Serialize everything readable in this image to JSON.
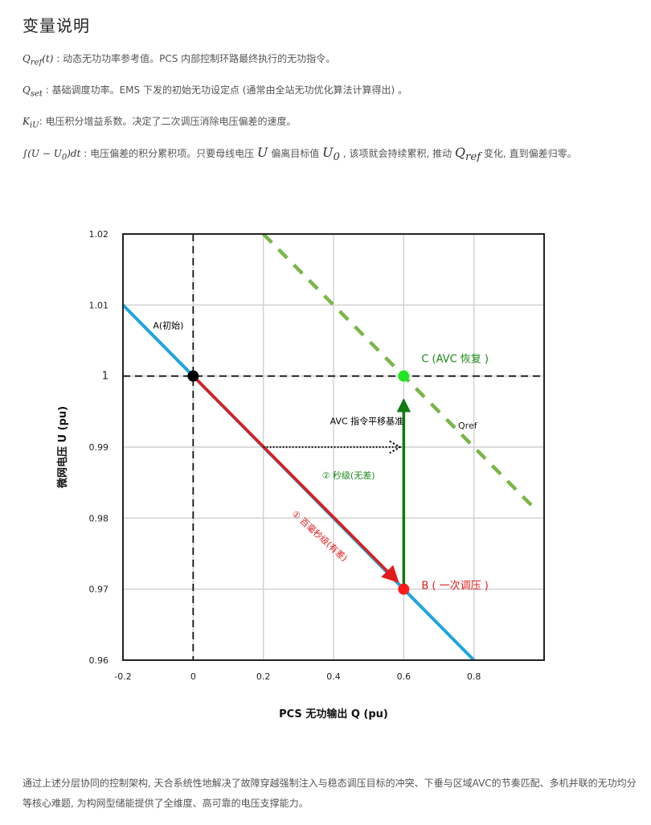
{
  "heading": "变量说明",
  "definitions": [
    {
      "symbol": "Q_ref(t)",
      "sep": " : ",
      "text": "动态无功功率参考值。PCS 内部控制环路最终执行的无功指令。"
    },
    {
      "symbol": "Q_set",
      "sep": " : ",
      "text": "基础调度功率。EMS 下发的初始无功设定点 (通常由全站无功优化算法计算得出) 。"
    },
    {
      "symbol": "K_iU",
      "sep": ": ",
      "text": "电压积分增益系数。决定了二次调压消除电压偏差的速度。"
    },
    {
      "symbol": "∫(U − U0)dt",
      "sep": " : ",
      "text_a": "电压偏差的积分累积项。只要母线电压 ",
      "sym_u": "U",
      "text_b": " 偏离目标值 ",
      "sym_u0": "U0",
      "text_c": " , 该项就会持续累积, 推动 ",
      "sym_qref": "Qref",
      "text_d": " 变化, 直到偏差归零。"
    }
  ],
  "chart_data": {
    "type": "line",
    "xlabel": "PCS 无功输出 Q (pu)",
    "ylabel": "微网电压 U (pu)",
    "xlim": [
      -0.2,
      1.0
    ],
    "ylim": [
      0.96,
      1.02
    ],
    "x_ticks": [
      -0.2,
      0,
      0.2,
      0.4,
      0.6,
      0.8
    ],
    "x_tick_labels": [
      "-0.2",
      "0",
      "0.2",
      "0.4",
      "0.6",
      "0.8"
    ],
    "y_ticks": [
      0.96,
      0.97,
      0.98,
      0.99,
      1.0,
      1.01,
      1.02
    ],
    "y_tick_labels": [
      "0.96",
      "0.97",
      "0.98",
      "0.99",
      "1",
      "1.01",
      "1.02"
    ],
    "grid": true,
    "series": [
      {
        "style": "solid",
        "color": "#1ea5e0",
        "points": [
          [
            -0.2,
            1.01
          ],
          [
            0.8,
            0.96
          ]
        ]
      },
      {
        "name": "Qref",
        "style": "dashed",
        "color": "#7ab648",
        "points": [
          [
            0.2,
            1.02
          ],
          [
            0.98,
            0.981
          ]
        ]
      }
    ],
    "reference_lines": [
      {
        "orientation": "horizontal",
        "value": 1.0,
        "style": "dashed",
        "color": "#111111"
      },
      {
        "orientation": "vertical",
        "value": 0.0,
        "style": "dashed",
        "color": "#111111"
      }
    ],
    "points": [
      {
        "id": "A",
        "x": 0.0,
        "y": 1.0,
        "color": "#000000",
        "label": "A(初始)",
        "label_color": "#000000"
      },
      {
        "id": "B",
        "x": 0.6,
        "y": 0.97,
        "color": "#ff1a1a",
        "label": "B ( 一次调压 )",
        "label_color": "#e01b1b"
      },
      {
        "id": "C",
        "x": 0.6,
        "y": 1.0,
        "color": "#22e622",
        "label": "C (AVC 恢复 )",
        "label_color": "#1a8a1a"
      }
    ],
    "arrows": [
      {
        "id": "primary",
        "from": [
          0.0,
          1.0
        ],
        "to": [
          0.58,
          0.9712
        ],
        "color": "#e01b1b",
        "style": "solid",
        "label": "① 百毫秒级(有差)",
        "label_color": "#e01b1b"
      },
      {
        "id": "secondary",
        "from": [
          0.6,
          0.97
        ],
        "to": [
          0.6,
          0.9965
        ],
        "color": "#0f7a0f",
        "style": "solid",
        "label": "② 秒级(无差)",
        "label_color": "#1a8a1a"
      },
      {
        "id": "shift",
        "from": [
          0.2,
          0.99
        ],
        "to": [
          0.59,
          0.99
        ],
        "color": "#111111",
        "style": "dotted",
        "label": "AVC 指令平移基准",
        "label_color": "#000000"
      }
    ],
    "series_label": "Qref"
  },
  "footer": "通过上述分层协同的控制架构, 天合系统性地解决了故障穿越强制注入与稳态调压目标的冲突、下垂与区域AVC的节奏匹配、多机并联的无功均分等核心难题, 为构网型储能提供了全维度、高可靠的电压支撑能力。"
}
